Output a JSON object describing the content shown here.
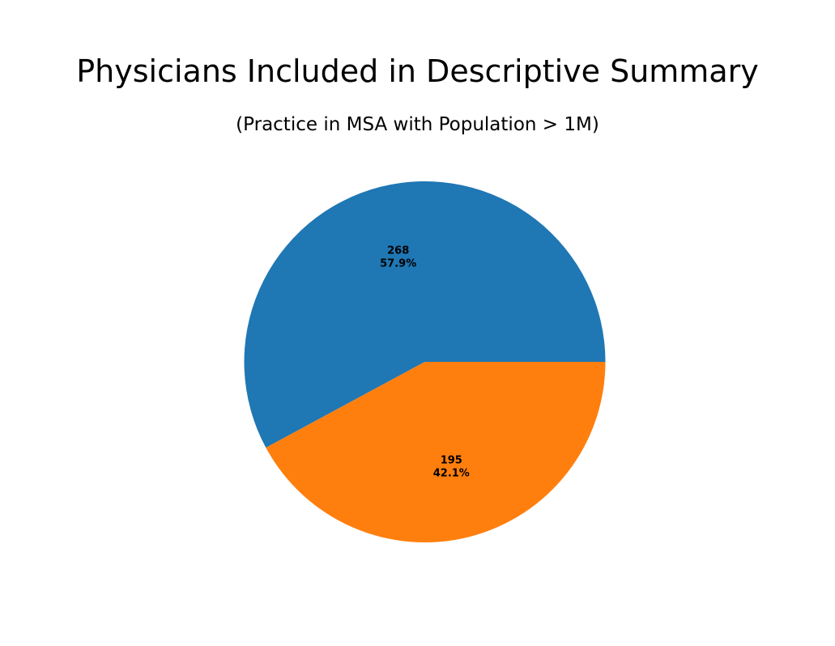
{
  "chart_data": {
    "type": "pie",
    "title": "Physicians Included in Descriptive Summary",
    "subtitle": "(Practice in MSA with Population > 1M)",
    "slices": [
      {
        "value": 268,
        "percent_label": "57.9%",
        "color": "#1f77b4"
      },
      {
        "value": 195,
        "percent_label": "42.1%",
        "color": "#ff7f0e"
      }
    ],
    "start_angle": "0 degrees (3 o'clock)",
    "direction": "counterclockwise",
    "legend": "none"
  }
}
